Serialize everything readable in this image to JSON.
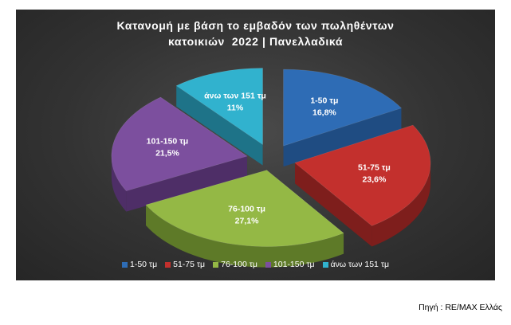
{
  "chart_data": {
    "type": "pie",
    "title_lines": [
      "Κατανομή με βάση το εμβαδόν των πωληθέντων",
      "κατοικιών  2022 | Πανελλαδικά"
    ],
    "slices": [
      {
        "name": "1-50 τμ",
        "value": 16.8,
        "label": "16,8%",
        "color": "#2E6CB5",
        "side": "#1F4C82",
        "explode": 14
      },
      {
        "name": "51-75 τμ",
        "value": 23.6,
        "label": "23,6%",
        "color": "#C3302D",
        "side": "#7E1E1C",
        "explode": 14
      },
      {
        "name": "76-100 τμ",
        "value": 27.1,
        "label": "27,1%",
        "color": "#94B845",
        "side": "#5E7A28",
        "explode": 10
      },
      {
        "name": "101-150 τμ",
        "value": 21.5,
        "label": "21,5%",
        "color": "#7C4F9E",
        "side": "#4E2E67",
        "explode": 14
      },
      {
        "name": "άνω των 151 τμ",
        "value": 11,
        "label": "11%",
        "color": "#31B2CE",
        "side": "#1E7388",
        "explode": 14
      }
    ],
    "legend_position": "bottom"
  },
  "source_note": "Πηγή : RE/MAX Ελλάς"
}
